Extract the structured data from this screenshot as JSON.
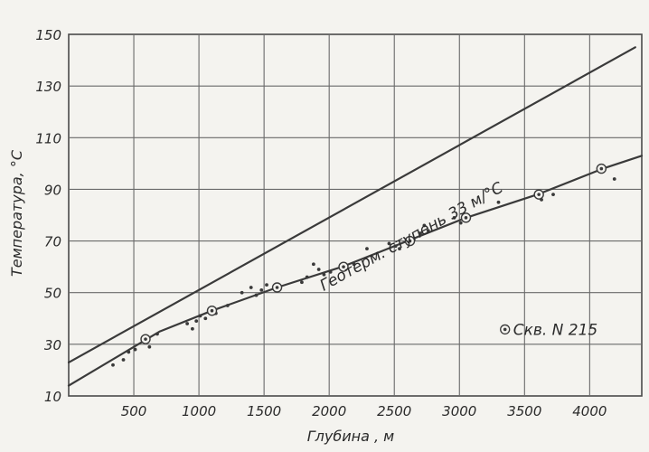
{
  "chart_data": {
    "type": "scatter",
    "title": "",
    "xlabel": "Глубина , м",
    "ylabel": "Температура, °С",
    "xlim": [
      0,
      4400
    ],
    "ylim": [
      10,
      150
    ],
    "grid": true,
    "x_ticks": [
      500,
      1000,
      1500,
      2000,
      2500,
      3000,
      3500,
      4000
    ],
    "x_tick_labels": [
      "500",
      "1000",
      "1500",
      "2000",
      "2500",
      "3000",
      "3500",
      "4000"
    ],
    "y_ticks": [
      10,
      30,
      50,
      70,
      90,
      110,
      130,
      150
    ],
    "y_tick_labels": [
      "10",
      "30",
      "50",
      "70",
      "90",
      "110",
      "130",
      "150"
    ],
    "series": [
      {
        "kind": "line",
        "label": "Геотерм. ступень 33 м/°С",
        "x": [
          0,
          4350
        ],
        "y": [
          23,
          145
        ],
        "color": "#3a3a3a"
      },
      {
        "kind": "line",
        "label": "",
        "x": [
          0,
          400,
          700,
          1100,
          1600,
          2100,
          2600,
          3050,
          3600,
          4100,
          4400
        ],
        "y": [
          14,
          26,
          35,
          43,
          52,
          60,
          70,
          79,
          88,
          98,
          103
        ],
        "color": "#3a3a3a"
      },
      {
        "kind": "scatter",
        "marker": "dot",
        "label": "",
        "x": [
          340,
          420,
          460,
          510,
          580,
          620,
          680,
          910,
          950,
          980,
          1010,
          1050,
          1090,
          1130,
          1220,
          1330,
          1400,
          1440,
          1480,
          1520,
          1790,
          1830,
          1880,
          1920,
          1960,
          2010,
          2190,
          2290,
          2460,
          2510,
          2540,
          2700,
          2730,
          2760,
          2960,
          3010,
          3050,
          3300,
          3630,
          3720,
          4190
        ],
        "y": [
          22,
          24,
          27,
          28,
          31,
          29,
          34,
          38,
          36,
          39,
          41,
          40,
          44,
          42,
          45,
          50,
          52,
          49,
          51,
          53,
          54,
          56,
          61,
          59,
          57,
          58,
          61,
          67,
          69,
          68,
          67,
          73,
          76,
          74,
          79,
          77,
          78,
          85,
          86,
          88,
          94
        ],
        "color": "#3a3a3a"
      },
      {
        "kind": "scatter",
        "marker": "circled-dot",
        "label": "Скв. N 215",
        "x": [
          590,
          1100,
          1600,
          2110,
          2620,
          3050,
          3610,
          4090
        ],
        "y": [
          32,
          43,
          52,
          60,
          70,
          79,
          88,
          98
        ],
        "color": "#3a3a3a"
      }
    ],
    "annotations": [
      {
        "text": "Геотерм. ступень 33 м/°С",
        "x": 2650,
        "y": 70
      },
      {
        "text": "Скв. N 215",
        "x": 3350,
        "y": 34
      }
    ]
  }
}
